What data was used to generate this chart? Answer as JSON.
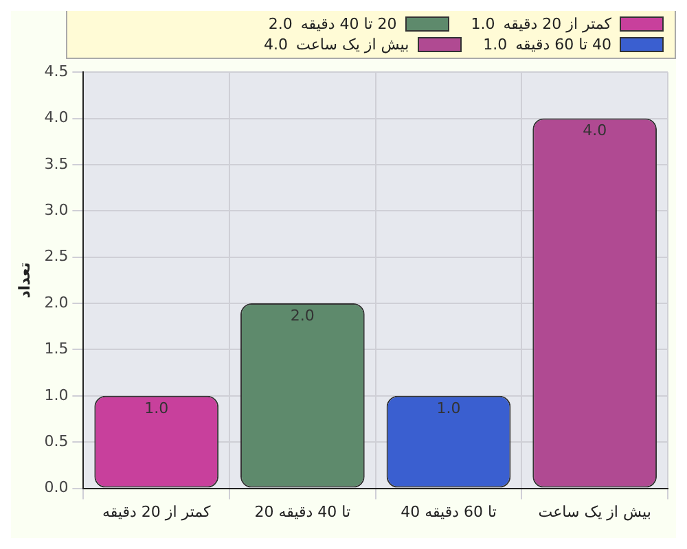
{
  "chart_data": {
    "type": "bar",
    "ylabel": "تعداد",
    "categories": [
      "کمتر از 20 دقیقه",
      "20 تا 40 دقیقه",
      "40 تا 60 دقیقه",
      "بیش از یک ساعت"
    ],
    "series": [
      {
        "name": "کمتر از 20 دقیقه",
        "color": "#c8409c",
        "values": [
          1,
          null,
          null,
          null
        ],
        "value_labels": [
          "1.0",
          null,
          null,
          null
        ]
      },
      {
        "name": "20 تا 40 دقیقه",
        "color": "#5e8a6c",
        "values": [
          null,
          2,
          null,
          null
        ],
        "value_labels": [
          null,
          "2.0",
          null,
          null
        ]
      },
      {
        "name": "40 تا 60 دقیقه",
        "color": "#3a5fd0",
        "values": [
          null,
          null,
          1,
          null
        ],
        "value_labels": [
          null,
          null,
          "1.0",
          null
        ]
      },
      {
        "name": "بیش از یک ساعت",
        "color": "#b04a92",
        "values": [
          null,
          null,
          null,
          4
        ],
        "value_labels": [
          null,
          null,
          null,
          "4.0"
        ]
      }
    ],
    "ylim": [
      0,
      4.5
    ],
    "yticks": [
      {
        "value": 0,
        "label": "0.0"
      },
      0.5,
      {
        "value": 1,
        "label": "1.0"
      },
      1.5,
      {
        "value": 2,
        "label": "2.0"
      },
      2.5,
      {
        "value": 3,
        "label": "3.0"
      },
      3.5,
      {
        "value": 4,
        "label": "4.0"
      },
      4.5
    ],
    "grid": true,
    "legend": "top"
  }
}
